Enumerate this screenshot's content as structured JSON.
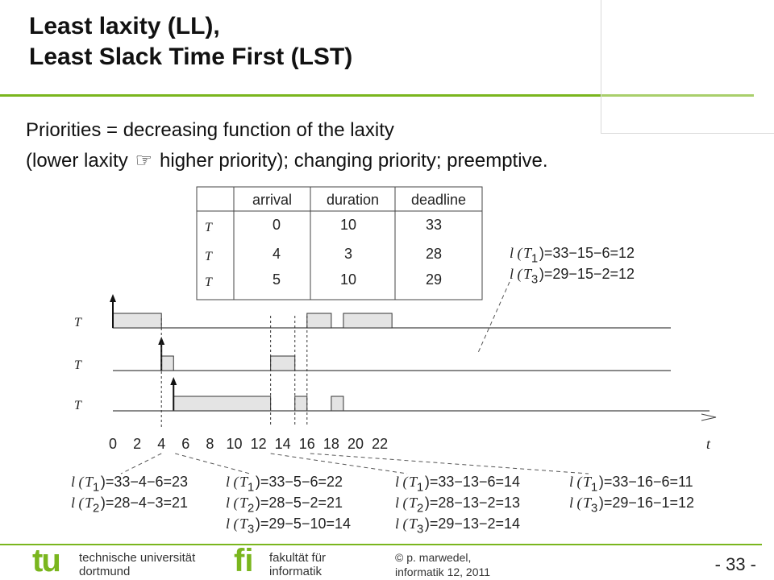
{
  "slide": {
    "title_line1": "Least laxity (LL),",
    "title_line2": "Least Slack Time First (LST)",
    "body_line1": "Priorities = decreasing function of the laxity",
    "body_line2_before": "(lower laxity ",
    "body_arrow_icon": "pointing-hand-icon",
    "body_line2_after": " higher priority); changing priority; preemptive.",
    "accent_color": "#7ab61e"
  },
  "task_table": {
    "headers": [
      "",
      "arrival",
      "duration",
      "deadline"
    ],
    "rows": [
      {
        "task": "T",
        "sub": "1",
        "arrival": "0",
        "duration": "10",
        "deadline": "33"
      },
      {
        "task": "T",
        "sub": "2",
        "arrival": "4",
        "duration": "3",
        "deadline": "28"
      },
      {
        "task": "T",
        "sub": "3",
        "arrival": "5",
        "duration": "10",
        "deadline": "29"
      }
    ]
  },
  "timeline": {
    "axis_ticks": [
      "0",
      "2",
      "4",
      "6",
      "8",
      "10",
      "12",
      "14",
      "16",
      "18",
      "20",
      "22"
    ],
    "axis_label": "t",
    "tasks": [
      {
        "label": "T",
        "sub": "1",
        "arrivals": [
          0
        ],
        "segments": [
          [
            0,
            4
          ],
          [
            16,
            18
          ],
          [
            19,
            23
          ]
        ]
      },
      {
        "label": "T",
        "sub": "2",
        "arrivals": [
          4
        ],
        "segments": [
          [
            4,
            5
          ],
          [
            13,
            15
          ]
        ]
      },
      {
        "label": "T",
        "sub": "3",
        "arrivals": [
          5
        ],
        "segments": [
          [
            5,
            13
          ],
          [
            15,
            16
          ],
          [
            18,
            19
          ]
        ]
      }
    ],
    "dashed_times": [
      4,
      13,
      15,
      16
    ]
  },
  "laxity_top": [
    {
      "l": "l (",
      "t": "T",
      "sub": "1",
      "rest": ")=33−15−6=12"
    },
    {
      "l": "l (",
      "t": "T",
      "sub": "3",
      "rest": ")=29−15−2=12"
    }
  ],
  "laxity_groups": [
    [
      {
        "l": "l (",
        "t": "T",
        "sub": "1",
        "rest": ")=33−4−6=23"
      },
      {
        "l": "l (",
        "t": "T",
        "sub": "2",
        "rest": ")=28−4−3=21"
      }
    ],
    [
      {
        "l": "l (",
        "t": "T",
        "sub": "1",
        "rest": ")=33−5−6=22"
      },
      {
        "l": "l (",
        "t": "T",
        "sub": "2",
        "rest": ")=28−5−2=21"
      },
      {
        "l": "l (",
        "t": "T",
        "sub": "3",
        "rest": ")=29−5−10=14"
      }
    ],
    [
      {
        "l": "l (",
        "t": "T",
        "sub": "1",
        "rest": ")=33−13−6=14"
      },
      {
        "l": "l (",
        "t": "T",
        "sub": "2",
        "rest": ")=28−13−2=13"
      },
      {
        "l": "l (",
        "t": "T",
        "sub": "3",
        "rest": ")=29−13−2=14"
      }
    ],
    [
      {
        "l": "l (",
        "t": "T",
        "sub": "1",
        "rest": ")=33−16−6=11"
      },
      {
        "l": "l (",
        "t": "T",
        "sub": "3",
        "rest": ")=29−16−1=12"
      }
    ]
  ],
  "footer": {
    "tu_logo_text": "tu",
    "uni_line1": "technische universität",
    "uni_line2": "dortmund",
    "fi_logo_text": "fi",
    "fac_line1": "fakultät für",
    "fac_line2": "informatik",
    "copyright_symbol": "©",
    "author_line1": "p. marwedel,",
    "author_line2": "informatik 12,  2011",
    "page_number": "-  33 -"
  }
}
